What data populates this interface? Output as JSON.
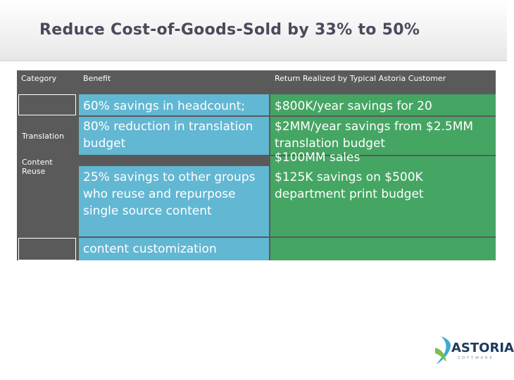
{
  "slide": {
    "title": "Reduce Cost-of-Goods-Sold by 33% to 50%"
  },
  "table": {
    "headers": {
      "category": "Category",
      "benefit": "Benefit",
      "return": "Return Realized by Typical Astoria Customer"
    },
    "rows": [
      {
        "category": "",
        "benefit": "60% savings in headcount;",
        "return": "$800K/year savings for 20"
      },
      {
        "category": "Translation",
        "benefit": "80% reduction in translation budget",
        "return": "$2MM/year savings from $2.5MM translation budget"
      },
      {
        "category": "Content Reuse",
        "benefit": "25% savings to other groups who reuse and repurpose single source content",
        "return": "$125K savings on $500K department print budget",
        "return_overflow": "$100MM sales"
      },
      {
        "category": "",
        "benefit": "content customization",
        "return": ""
      }
    ]
  },
  "logo": {
    "name": "ASTORIA",
    "tagline": "SOFTWARE",
    "colors": {
      "primary": "#1e3a5c",
      "accent": "#3fa9d6",
      "green": "#7cc04b"
    }
  },
  "colors": {
    "title": "#4a4a5c",
    "table_bg": "#5a5a5a",
    "benefit_cell": "#62b7d3",
    "return_cell": "#45a563"
  }
}
